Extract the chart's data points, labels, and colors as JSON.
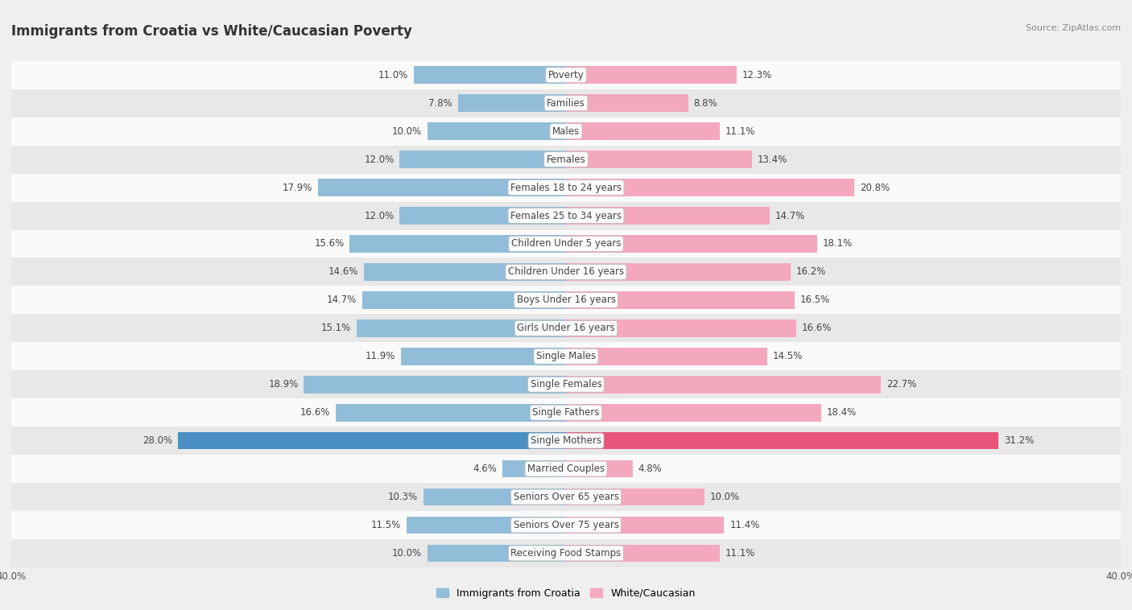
{
  "title": "Immigrants from Croatia vs White/Caucasian Poverty",
  "source": "Source: ZipAtlas.com",
  "categories": [
    "Poverty",
    "Families",
    "Males",
    "Females",
    "Females 18 to 24 years",
    "Females 25 to 34 years",
    "Children Under 5 years",
    "Children Under 16 years",
    "Boys Under 16 years",
    "Girls Under 16 years",
    "Single Males",
    "Single Females",
    "Single Fathers",
    "Single Mothers",
    "Married Couples",
    "Seniors Over 65 years",
    "Seniors Over 75 years",
    "Receiving Food Stamps"
  ],
  "left_values": [
    11.0,
    7.8,
    10.0,
    12.0,
    17.9,
    12.0,
    15.6,
    14.6,
    14.7,
    15.1,
    11.9,
    18.9,
    16.6,
    28.0,
    4.6,
    10.3,
    11.5,
    10.0
  ],
  "right_values": [
    12.3,
    8.8,
    11.1,
    13.4,
    20.8,
    14.7,
    18.1,
    16.2,
    16.5,
    16.6,
    14.5,
    22.7,
    18.4,
    31.2,
    4.8,
    10.0,
    11.4,
    11.1
  ],
  "left_color": "#92BDD9",
  "right_color": "#F4A8BE",
  "highlight_left_color": "#4A90C4",
  "highlight_right_color": "#E8547A",
  "highlight_row": 13,
  "bar_height": 0.62,
  "xlim": 40.0,
  "bg_color": "#EFEFEF",
  "row_bg_even": "#FAFAFA",
  "row_bg_odd": "#E8E8E8",
  "value_fontsize": 8.5,
  "cat_fontsize": 8.5,
  "title_fontsize": 12,
  "source_fontsize": 8,
  "legend_left": "Immigrants from Croatia",
  "legend_right": "White/Caucasian",
  "axis_label_fontsize": 8.5
}
